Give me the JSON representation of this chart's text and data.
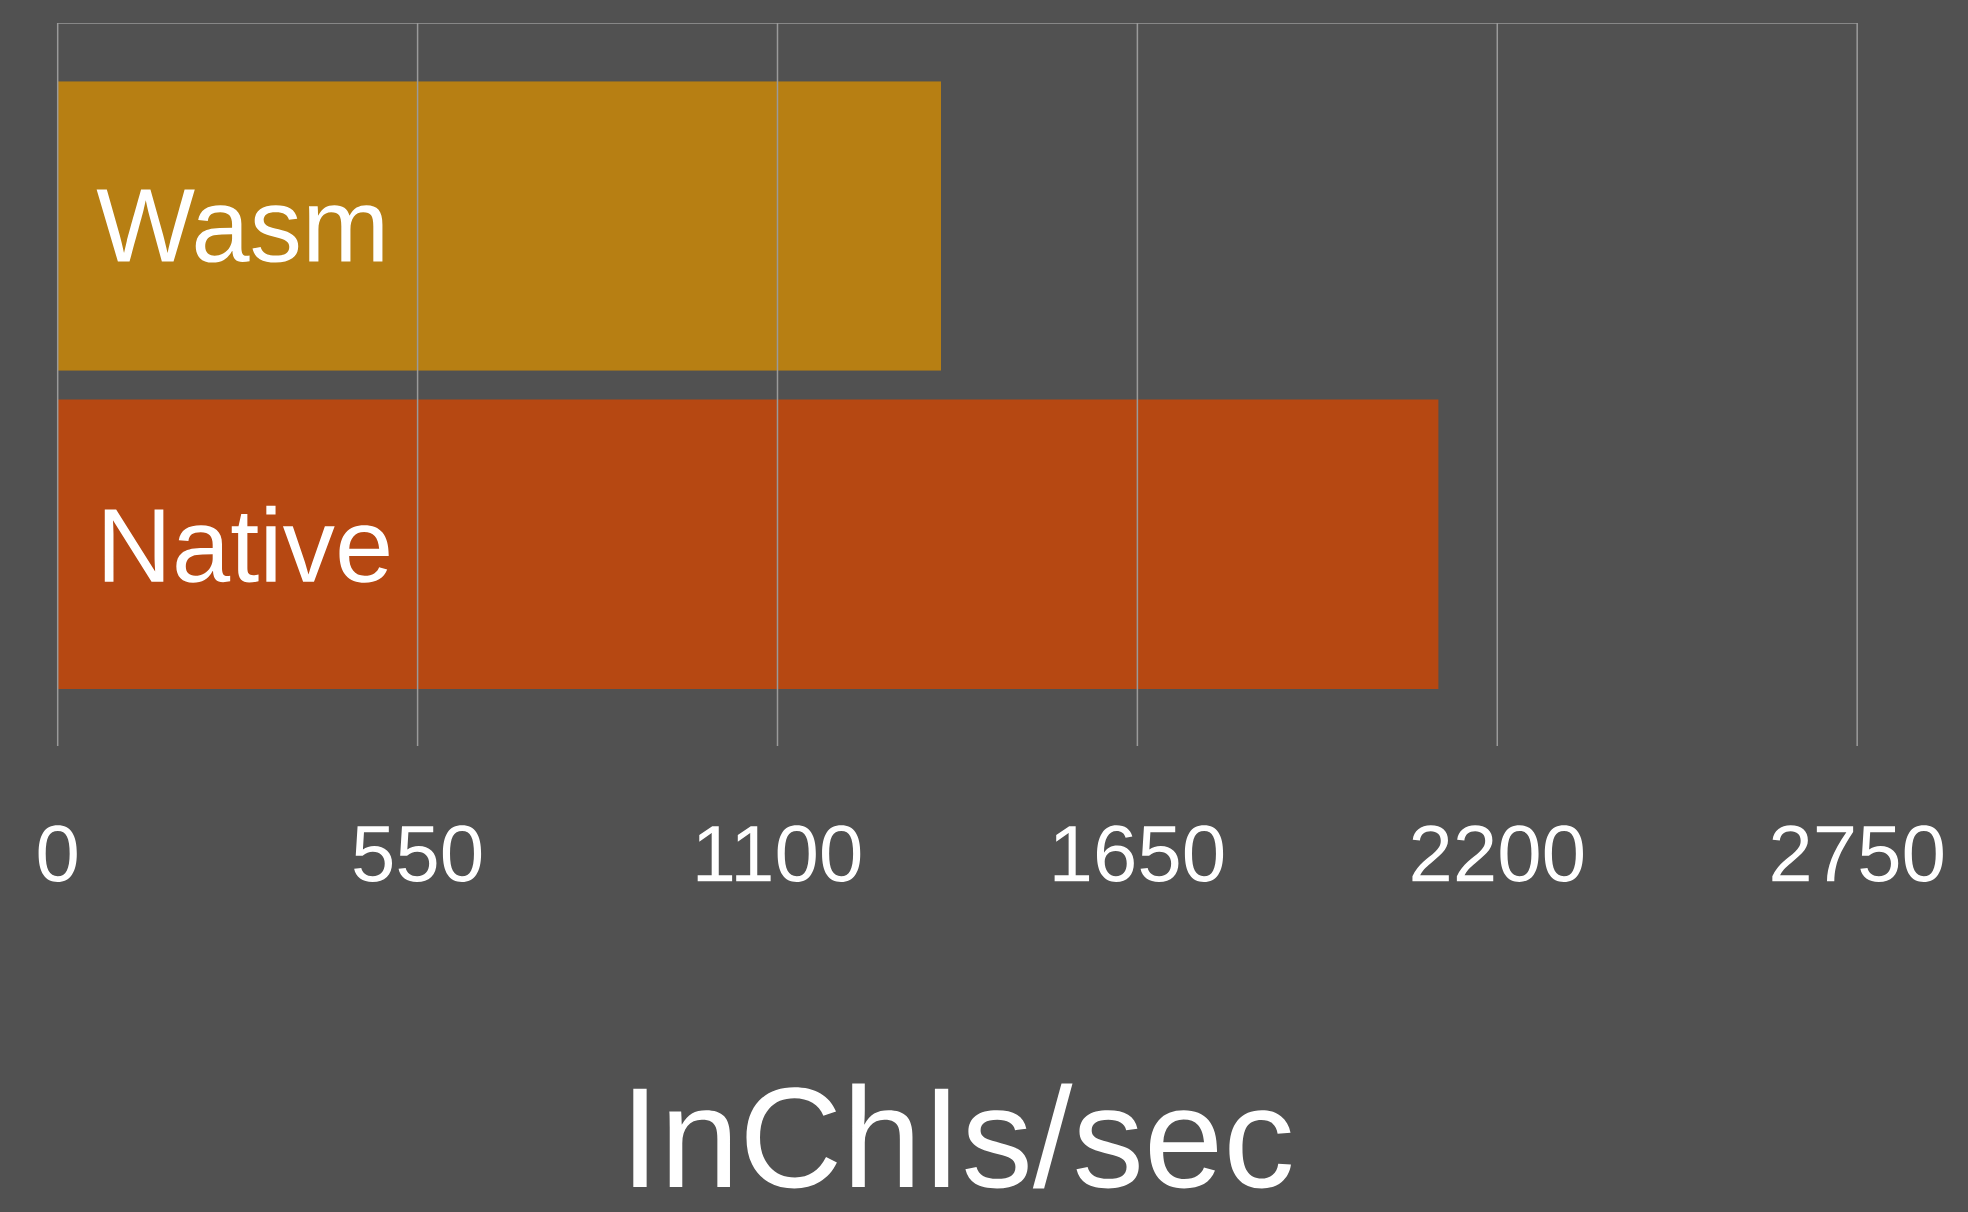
{
  "chart_data": {
    "type": "bar",
    "orientation": "horizontal",
    "categories": [
      "Wasm",
      "Native"
    ],
    "colors": [
      "#b77f13",
      "#b64812"
    ],
    "values": [
      1350,
      2110
    ],
    "xlabel": "InChIs/sec",
    "xlim": [
      0,
      2750
    ],
    "xticks": [
      0,
      550,
      1100,
      1650,
      2200,
      2750
    ],
    "grid": "x"
  }
}
